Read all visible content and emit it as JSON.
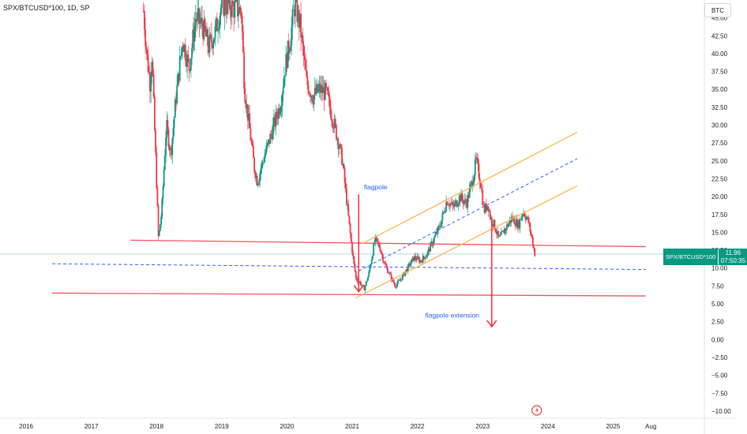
{
  "header": {
    "symbol_label": "SPX/BTCUSD*100, 1D, SP"
  },
  "currency_label": "BTC",
  "price_badge": {
    "symbol": "SPX/BTCUSD*100",
    "price": "11.96",
    "countdown": "07:50:35"
  },
  "colors": {
    "up": "#089981",
    "down": "#f23645",
    "channel": "#ffb74d",
    "support": "#f7525f",
    "dashed": "#2962ff",
    "price_line": "#089981"
  },
  "chart_data": {
    "type": "candlestick",
    "title": "",
    "ylim": [
      -11,
      47.5
    ],
    "y_ticks": [
      45,
      42.5,
      40,
      37.5,
      35,
      32.5,
      30,
      27.5,
      25,
      22.5,
      20,
      17.5,
      15,
      12.5,
      10,
      7.5,
      5,
      2.5,
      0,
      -2.5,
      -5,
      -7.5,
      -10
    ],
    "y_tick_labels": [
      "45.00",
      "42.50",
      "40.00",
      "37.50",
      "35.00",
      "32.50",
      "30.00",
      "27.50",
      "25.00",
      "22.50",
      "20.00",
      "17.50",
      "15.00",
      "12.50",
      "10.00",
      "7.50",
      "5.00",
      "2.50",
      "0.00",
      "−2.50",
      "−5.00",
      "−7.50",
      "−10.00"
    ],
    "x_ticks": [
      "2016",
      "2017",
      "2018",
      "2019",
      "2020",
      "2021",
      "2022",
      "2023",
      "2024",
      "2025",
      "Aug"
    ],
    "x_tick_values": [
      2016,
      2017,
      2018,
      2019,
      2020,
      2021,
      2022,
      2023,
      2024,
      2025,
      2025.58
    ],
    "xlim": [
      2015.6,
      2026.4
    ],
    "last_price": 11.96,
    "price_path": [
      [
        2017.8,
        46
      ],
      [
        2017.85,
        40
      ],
      [
        2017.9,
        36
      ],
      [
        2017.93,
        40
      ],
      [
        2017.96,
        32
      ],
      [
        2018.0,
        22
      ],
      [
        2018.03,
        14
      ],
      [
        2018.08,
        18
      ],
      [
        2018.15,
        30
      ],
      [
        2018.22,
        26
      ],
      [
        2018.3,
        34
      ],
      [
        2018.4,
        42
      ],
      [
        2018.5,
        38
      ],
      [
        2018.6,
        45
      ],
      [
        2018.7,
        44
      ],
      [
        2018.8,
        41
      ],
      [
        2018.9,
        43
      ],
      [
        2019.0,
        47
      ],
      [
        2019.3,
        46
      ],
      [
        2019.35,
        35
      ],
      [
        2019.42,
        30
      ],
      [
        2019.5,
        24
      ],
      [
        2019.55,
        22
      ],
      [
        2019.6,
        24
      ],
      [
        2019.7,
        27
      ],
      [
        2019.8,
        30
      ],
      [
        2019.9,
        33
      ],
      [
        2019.97,
        38
      ],
      [
        2020.05,
        42
      ],
      [
        2020.12,
        47
      ],
      [
        2020.2,
        44
      ],
      [
        2020.3,
        36
      ],
      [
        2020.4,
        34
      ],
      [
        2020.5,
        35
      ],
      [
        2020.6,
        34.5
      ],
      [
        2020.7,
        31
      ],
      [
        2020.78,
        28
      ],
      [
        2020.85,
        25
      ],
      [
        2020.92,
        19
      ],
      [
        2020.98,
        14
      ],
      [
        2021.02,
        11
      ],
      [
        2021.06,
        8.5
      ],
      [
        2021.12,
        8
      ],
      [
        2021.18,
        7
      ],
      [
        2021.25,
        9
      ],
      [
        2021.3,
        11.5
      ],
      [
        2021.35,
        14
      ],
      [
        2021.42,
        13
      ],
      [
        2021.5,
        10.5
      ],
      [
        2021.58,
        9
      ],
      [
        2021.66,
        7.5
      ],
      [
        2021.75,
        8.5
      ],
      [
        2021.85,
        10
      ],
      [
        2021.95,
        11.5
      ],
      [
        2022.05,
        11
      ],
      [
        2022.15,
        12
      ],
      [
        2022.25,
        14
      ],
      [
        2022.35,
        16
      ],
      [
        2022.45,
        19.5
      ],
      [
        2022.55,
        18.5
      ],
      [
        2022.65,
        20
      ],
      [
        2022.75,
        19
      ],
      [
        2022.85,
        22.5
      ],
      [
        2022.9,
        25
      ],
      [
        2022.97,
        22
      ],
      [
        2023.02,
        18
      ],
      [
        2023.08,
        19
      ],
      [
        2023.12,
        17
      ],
      [
        2023.18,
        16
      ],
      [
        2023.25,
        14
      ],
      [
        2023.35,
        15.5
      ],
      [
        2023.45,
        17
      ],
      [
        2023.55,
        16
      ],
      [
        2023.62,
        18
      ],
      [
        2023.7,
        16.5
      ],
      [
        2023.76,
        14
      ],
      [
        2023.8,
        12
      ]
    ],
    "lines": [
      {
        "name": "upper-support",
        "type": "solid",
        "color": "support",
        "points": [
          [
            2017.6,
            13.9
          ],
          [
            2025.5,
            13.0
          ]
        ]
      },
      {
        "name": "lower-support",
        "type": "solid",
        "color": "support",
        "points": [
          [
            2016.4,
            6.5
          ],
          [
            2025.5,
            6.1
          ]
        ]
      },
      {
        "name": "mid-dashed",
        "type": "dashed",
        "color": "dashed",
        "points": [
          [
            2016.4,
            10.6
          ],
          [
            2025.5,
            9.8
          ]
        ]
      },
      {
        "name": "channel-upper",
        "type": "solid",
        "color": "channel",
        "points": [
          [
            2021.15,
            13.4
          ],
          [
            2024.45,
            29.0
          ]
        ]
      },
      {
        "name": "channel-lower",
        "type": "solid",
        "color": "channel",
        "points": [
          [
            2021.05,
            5.8
          ],
          [
            2024.45,
            21.5
          ]
        ]
      },
      {
        "name": "channel-mid",
        "type": "dashed",
        "color": "dashed",
        "points": [
          [
            2021.1,
            9.6
          ],
          [
            2024.45,
            25.3
          ]
        ]
      }
    ],
    "annotations": [
      {
        "text": "flagpole",
        "x": 2021.18,
        "y": 21.0
      },
      {
        "text": "flagpole extension",
        "x": 2022.12,
        "y": 3.1
      }
    ],
    "arrows": [
      {
        "name": "flagpole-arrow",
        "x": 2021.1,
        "y_from": 20.3,
        "y_to": 6.7
      },
      {
        "name": "flagpole-extension-arrow",
        "x": 2023.14,
        "y_from": 16.6,
        "y_to": 1.8
      }
    ]
  }
}
